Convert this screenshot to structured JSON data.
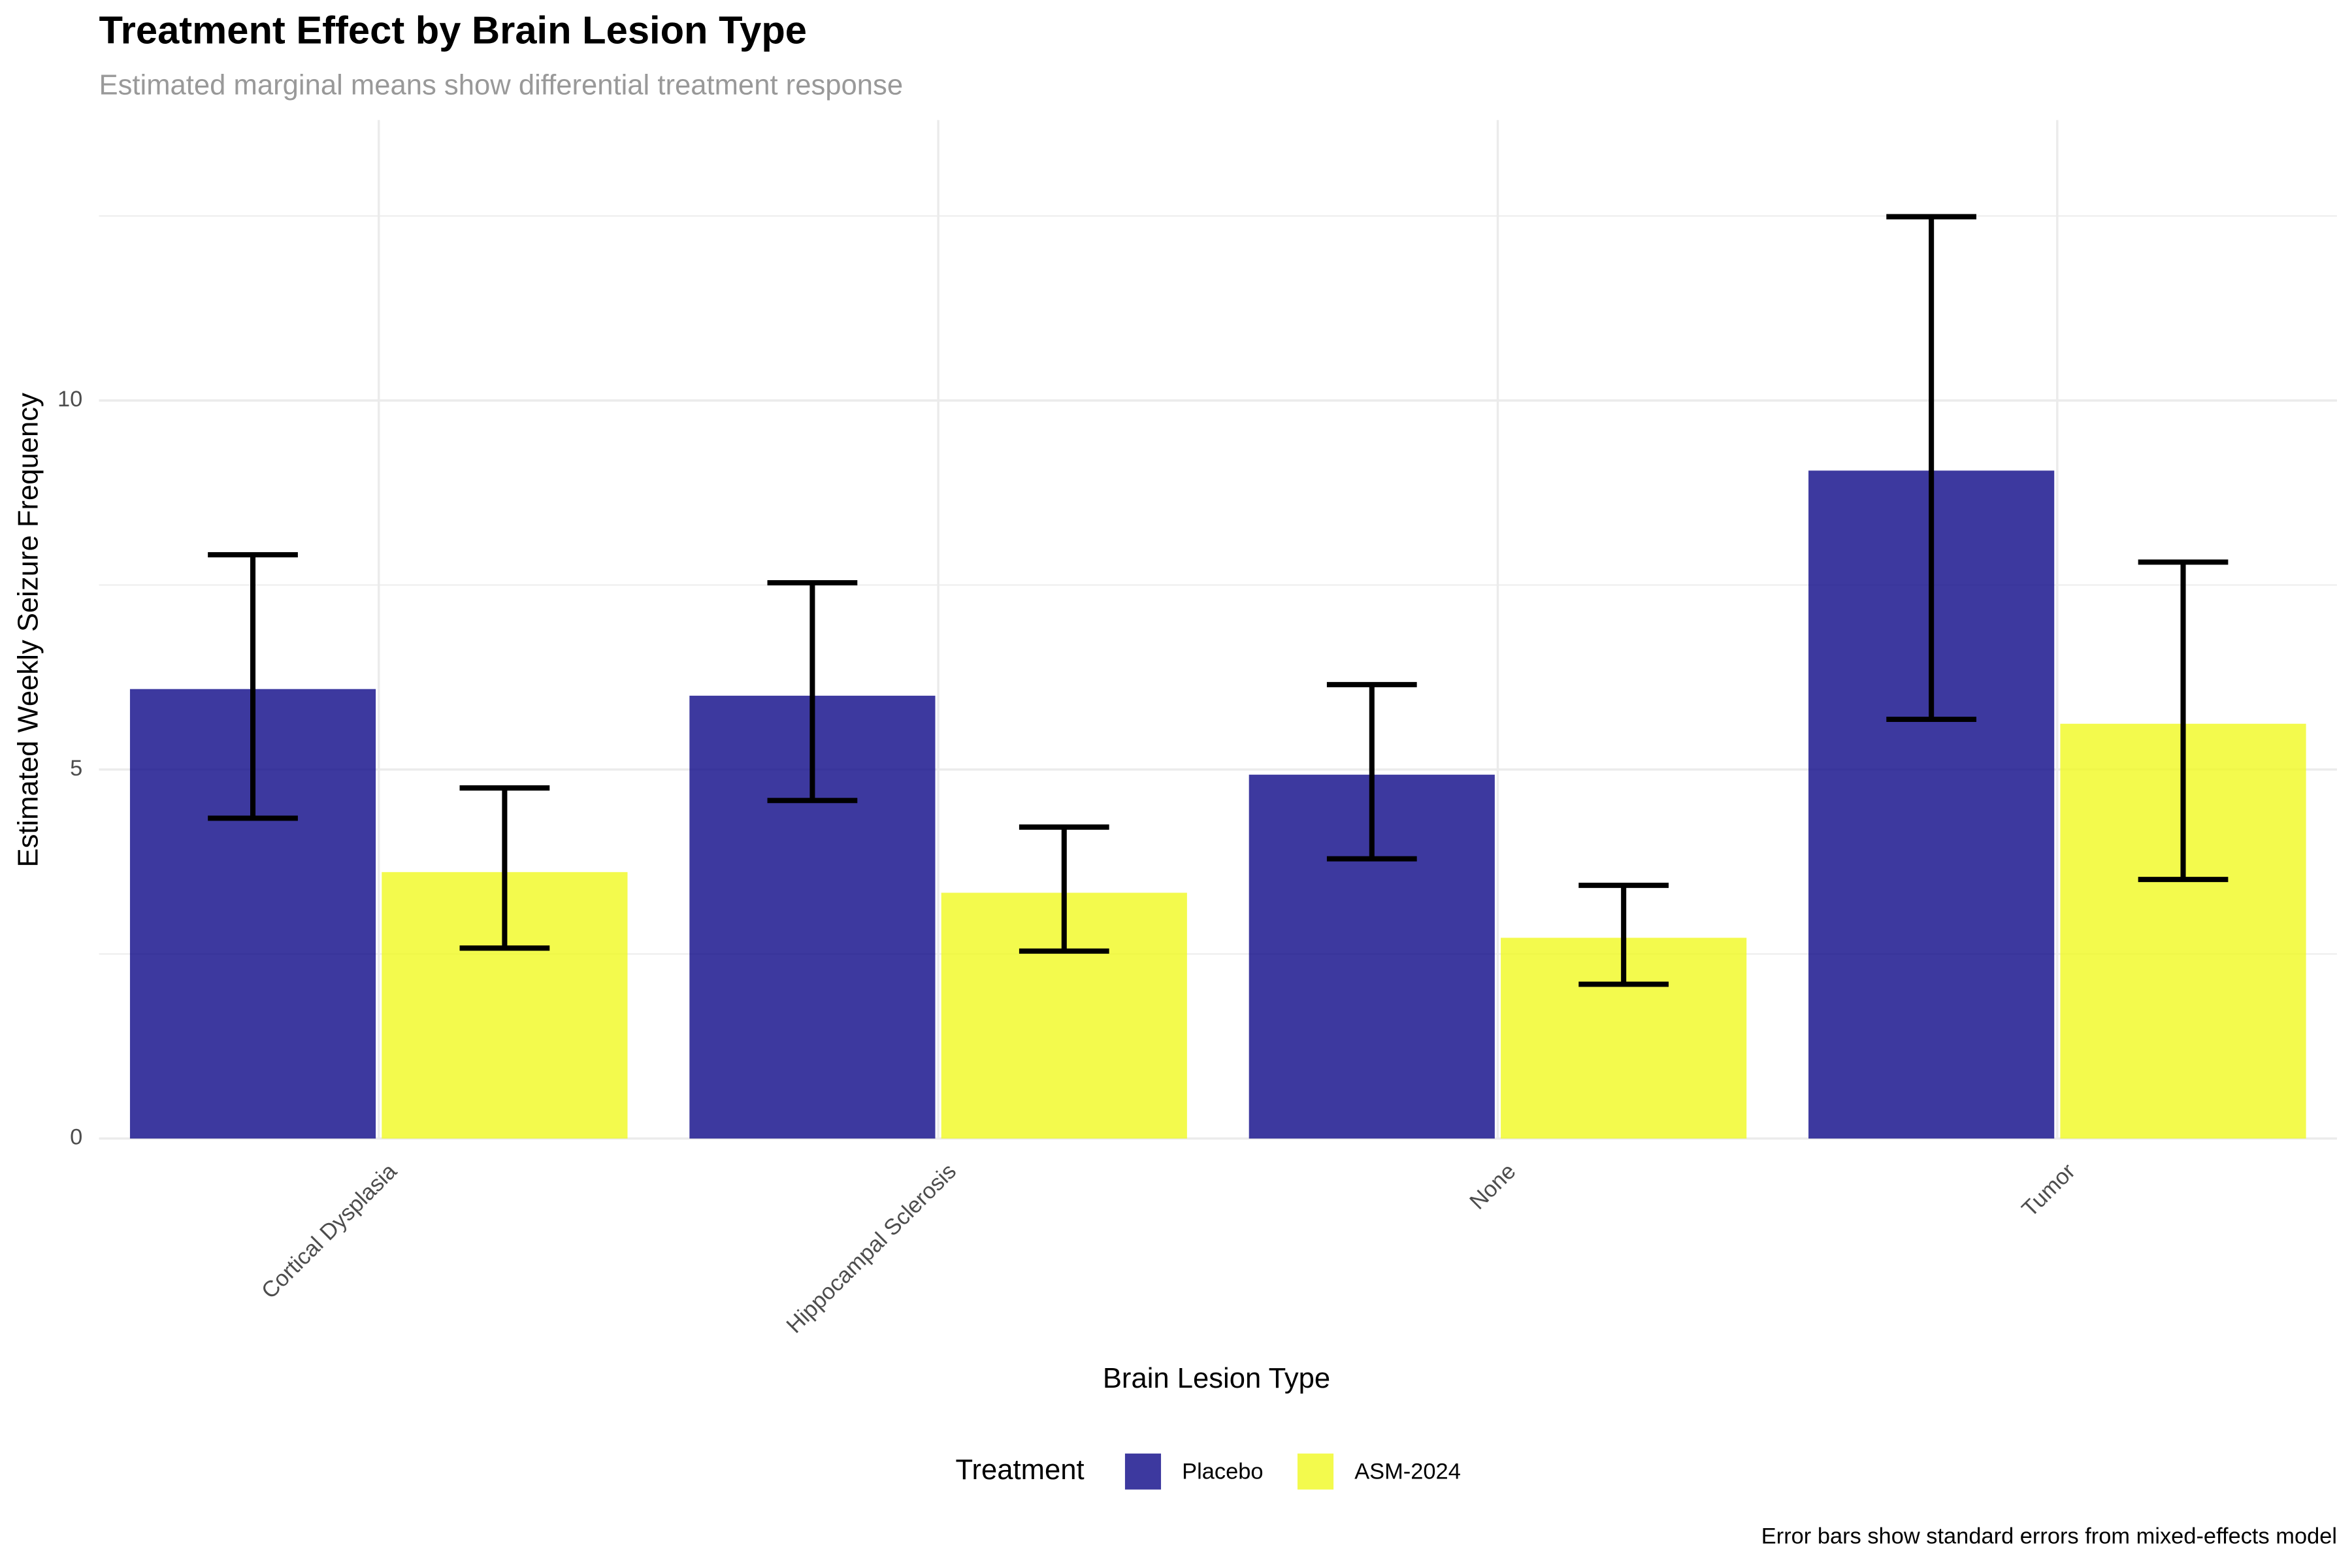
{
  "chart_data": {
    "type": "bar",
    "title": "Treatment Effect by Brain Lesion Type",
    "subtitle": "Estimated marginal means show differential treatment response",
    "caption": "Error bars show standard errors from mixed-effects model",
    "x_label": "Brain Lesion Type",
    "y_label": "Estimated Weekly Seizure Frequency",
    "legend_title": "Treatment",
    "legend_position": "bottom",
    "categories": [
      "Cortical Dysplasia",
      "Hippocampal Sclerosis",
      "None",
      "Tumor"
    ],
    "series": [
      {
        "name": "Placebo",
        "color": "#0D0887",
        "values": [
          6.09,
          6.0,
          4.93,
          9.05
        ],
        "lower": [
          4.34,
          4.58,
          3.79,
          5.68
        ],
        "upper": [
          7.91,
          7.53,
          6.15,
          12.49
        ]
      },
      {
        "name": "ASM-2024",
        "color": "#F0F921",
        "values": [
          3.61,
          3.33,
          2.72,
          5.62
        ],
        "lower": [
          2.58,
          2.54,
          2.09,
          3.51
        ],
        "upper": [
          4.75,
          4.22,
          3.43,
          7.81
        ]
      }
    ],
    "bar_opacity": 0.8,
    "ylim": [
      0,
      13.8
    ],
    "yticks": [
      0,
      5,
      10
    ],
    "minor_ygrid": [
      2.5,
      7.5,
      12.5
    ],
    "grid": true
  }
}
